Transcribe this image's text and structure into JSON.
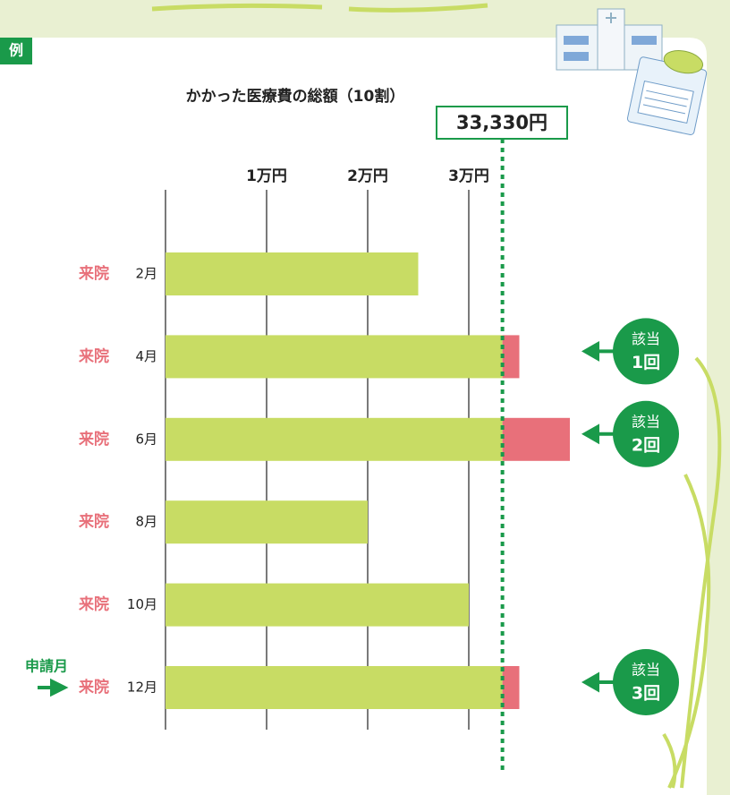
{
  "label": "例",
  "chart_data": {
    "type": "bar",
    "orientation": "horizontal",
    "title": "かかった医療費の総額（10割）",
    "categories": [
      "2月",
      "4月",
      "6月",
      "8月",
      "10月",
      "12月"
    ],
    "values": [
      25000,
      35000,
      40000,
      20000,
      30000,
      35000
    ],
    "color": "#c8dc64",
    "excess_color": "#e8707a",
    "threshold": {
      "value": 33330,
      "label": "33,330円"
    },
    "xlim": [
      0,
      50000
    ],
    "xticks": [
      {
        "value": 10000,
        "label": "1万円"
      },
      {
        "value": 20000,
        "label": "2万円"
      },
      {
        "value": 30000,
        "label": "3万円"
      }
    ],
    "grid": true,
    "visit_label": "来院",
    "apply_note": {
      "text": "申請月",
      "category": "12月"
    },
    "matches": [
      {
        "category": "4月",
        "line1": "該当",
        "line2": "1回"
      },
      {
        "category": "6月",
        "line1": "該当",
        "line2": "2回"
      },
      {
        "category": "12月",
        "line1": "該当",
        "line2": "3回"
      }
    ]
  }
}
